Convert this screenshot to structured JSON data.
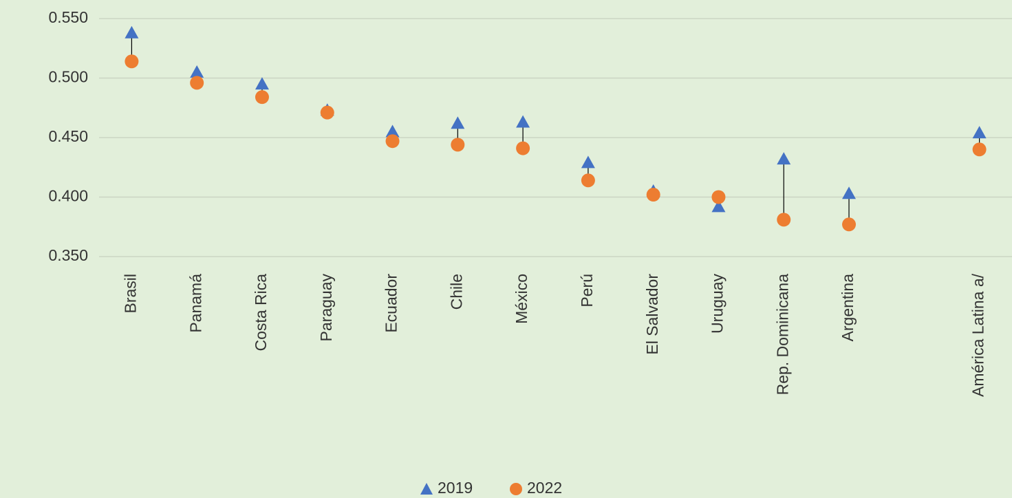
{
  "chart_data": {
    "type": "dumbbell",
    "categories": [
      "Brasil",
      "Panamá",
      "Costa Rica",
      "Paraguay",
      "Ecuador",
      "Chile",
      "México",
      "Perú",
      "El Salvador",
      "Uruguay",
      "Rep. Dominicana",
      "Argentina",
      null,
      "América Latina a/"
    ],
    "series": [
      {
        "name": "2019",
        "color": "#4472c4",
        "marker": "triangle",
        "values": [
          0.538,
          0.505,
          0.495,
          0.473,
          0.455,
          0.462,
          0.463,
          0.429,
          0.405,
          0.392,
          0.432,
          0.403,
          null,
          0.454
        ]
      },
      {
        "name": "2022",
        "color": "#ed7d31",
        "marker": "circle",
        "values": [
          0.514,
          0.496,
          0.484,
          0.471,
          0.447,
          0.444,
          0.441,
          0.414,
          0.402,
          0.4,
          0.381,
          0.377,
          null,
          0.44
        ]
      }
    ],
    "ylim": [
      0.35,
      0.55
    ],
    "yticks": [
      {
        "value": 0.35,
        "label": "0.350"
      },
      {
        "value": 0.4,
        "label": "0.400"
      },
      {
        "value": 0.45,
        "label": "0.450"
      },
      {
        "value": 0.5,
        "label": "0.500"
      },
      {
        "value": 0.55,
        "label": "0.550"
      }
    ],
    "grid": true,
    "legend": "bottom"
  }
}
